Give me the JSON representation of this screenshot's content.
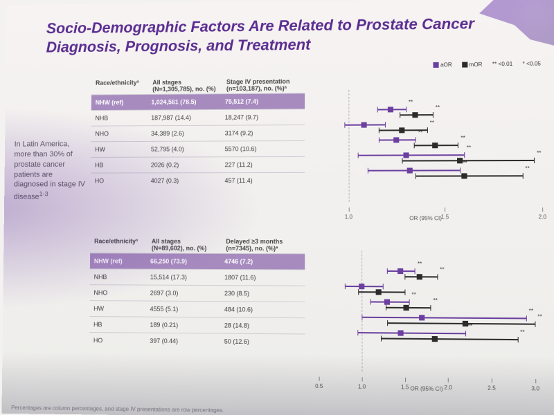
{
  "title": "Socio-Demographic Factors Are Related to Prostate Cancer Diagnosis, Prognosis, and Treatment",
  "title_color": "#5b2d91",
  "side_note": "In Latin America, more than 30% of prostate cancer patients are diagnosed in stage IV disease",
  "side_note_refs": "1-3",
  "legend": {
    "aor_label": "aOR",
    "aor_color": "#6b3fa0",
    "mor_label": "mOR",
    "mor_color": "#2b2b2b",
    "sig1_label": "** <0.01",
    "sig2_label": "* <0.05"
  },
  "axis_label": "OR (95% CI)",
  "panels": [
    {
      "id": "top",
      "headers": [
        "Race/ethnicity³",
        "All stages\n(N=1,305,785), no. (%)",
        "Stage IV presentation\n(n=103,187), no. (%)ª"
      ],
      "highlight_color": "#a78bbf",
      "rows": [
        {
          "label": "NHW (ref)",
          "c1": "1,024,561 (78.5)",
          "c2": "75,512 (7.4)",
          "ref": true
        },
        {
          "label": "NHB",
          "c1": "187,987 (14.4)",
          "c2": "18,247 (9.7)",
          "est": [
            {
              "kind": "aor",
              "or": 1.22,
              "lo": 1.15,
              "hi": 1.3,
              "sig": "**"
            },
            {
              "kind": "mor",
              "or": 1.35,
              "lo": 1.27,
              "hi": 1.44,
              "sig": "**"
            }
          ]
        },
        {
          "label": "NHO",
          "c1": "34,389 (2.6)",
          "c2": "3174 (9.2)",
          "est": [
            {
              "kind": "aor",
              "or": 1.08,
              "lo": 0.98,
              "hi": 1.19,
              "sig": ""
            },
            {
              "kind": "mor",
              "or": 1.28,
              "lo": 1.16,
              "hi": 1.41,
              "sig": "**"
            }
          ]
        },
        {
          "label": "HW",
          "c1": "52,795 (4.0)",
          "c2": "5570 (10.6)",
          "est": [
            {
              "kind": "aor",
              "or": 1.25,
              "lo": 1.16,
              "hi": 1.35,
              "sig": "**"
            },
            {
              "kind": "mor",
              "or": 1.45,
              "lo": 1.34,
              "hi": 1.57,
              "sig": "**"
            }
          ]
        },
        {
          "label": "HB",
          "c1": "2026 (0.2)",
          "c2": "227 (11.2)",
          "est": [
            {
              "kind": "aor",
              "or": 1.3,
              "lo": 1.05,
              "hi": 1.6,
              "sig": "**"
            },
            {
              "kind": "mor",
              "or": 1.58,
              "lo": 1.28,
              "hi": 1.96,
              "sig": "**"
            }
          ]
        },
        {
          "label": "HO",
          "c1": "4027 (0.3)",
          "c2": "457 (11.4)",
          "est": [
            {
              "kind": "aor",
              "or": 1.32,
              "lo": 1.1,
              "hi": 1.58,
              "sig": "**"
            },
            {
              "kind": "mor",
              "or": 1.6,
              "lo": 1.35,
              "hi": 1.9,
              "sig": "**"
            }
          ]
        }
      ],
      "axis": {
        "min": 0.8,
        "max": 2.0,
        "ticks": [
          1.0,
          1.5,
          2.0
        ]
      }
    },
    {
      "id": "bot",
      "headers": [
        "Race/ethnicity³",
        "All stages\n(N=89,602), no. (%)",
        "Delayed ≥3 months\n(n=7345), no. (%)ª"
      ],
      "highlight_color": "#a78bbf",
      "rows": [
        {
          "label": "NHW (ref)",
          "c1": "66,250 (73.9)",
          "c2": "4746 (7.2)",
          "ref": true
        },
        {
          "label": "NHB",
          "c1": "15,514 (17.3)",
          "c2": "1807 (11.6)",
          "est": [
            {
              "kind": "aor",
              "or": 1.45,
              "lo": 1.3,
              "hi": 1.62,
              "sig": "**"
            },
            {
              "kind": "mor",
              "or": 1.68,
              "lo": 1.5,
              "hi": 1.88,
              "sig": "**"
            }
          ]
        },
        {
          "label": "NHO",
          "c1": "2697 (3.0)",
          "c2": "230 (8.5)",
          "est": [
            {
              "kind": "aor",
              "or": 1.0,
              "lo": 0.8,
              "hi": 1.25,
              "sig": ""
            },
            {
              "kind": "mor",
              "or": 1.2,
              "lo": 0.96,
              "hi": 1.5,
              "sig": ""
            }
          ]
        },
        {
          "label": "HW",
          "c1": "4555 (5.1)",
          "c2": "484 (10.6)",
          "est": [
            {
              "kind": "aor",
              "or": 1.3,
              "lo": 1.1,
              "hi": 1.55,
              "sig": "**"
            },
            {
              "kind": "mor",
              "or": 1.52,
              "lo": 1.28,
              "hi": 1.8,
              "sig": "**"
            }
          ]
        },
        {
          "label": "HB",
          "c1": "189 (0.21)",
          "c2": "28 (14.8)",
          "est": [
            {
              "kind": "aor",
              "or": 1.7,
              "lo": 1.0,
              "hi": 2.9,
              "sig": "**"
            },
            {
              "kind": "mor",
              "or": 2.2,
              "lo": 1.3,
              "hi": 3.0,
              "sig": "**"
            }
          ]
        },
        {
          "label": "HO",
          "c1": "397 (0.44)",
          "c2": "50 (12.6)",
          "est": [
            {
              "kind": "aor",
              "or": 1.45,
              "lo": 0.95,
              "hi": 2.2,
              "sig": "**"
            },
            {
              "kind": "mor",
              "or": 1.85,
              "lo": 1.22,
              "hi": 2.8,
              "sig": "**"
            }
          ]
        }
      ],
      "axis": {
        "min": 0.4,
        "max": 3.1,
        "ticks": [
          0.5,
          1.0,
          1.5,
          2.0,
          2.5,
          3.0
        ]
      }
    }
  ],
  "footnote": "Percentages are column percentages, and stage IV presentations are row percentages."
}
